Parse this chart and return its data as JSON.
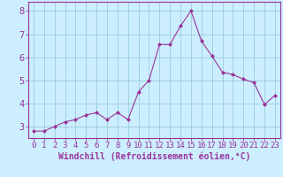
{
  "x": [
    0,
    1,
    2,
    3,
    4,
    5,
    6,
    7,
    8,
    9,
    10,
    11,
    12,
    13,
    14,
    15,
    16,
    17,
    18,
    19,
    20,
    21,
    22,
    23
  ],
  "y": [
    2.8,
    2.8,
    3.0,
    3.2,
    3.3,
    3.5,
    3.6,
    3.3,
    3.6,
    3.3,
    4.5,
    5.0,
    6.55,
    6.55,
    7.35,
    8.0,
    6.7,
    6.05,
    5.35,
    5.25,
    5.05,
    4.9,
    3.95,
    4.35
  ],
  "line_color": "#993399",
  "marker_color": "#993399",
  "bg_color": "#cceeff",
  "grid_color": "#99ccdd",
  "axis_color": "#993399",
  "tick_color": "#993399",
  "xlabel": "Windchill (Refroidissement éolien,°C)",
  "xlim": [
    -0.5,
    23.5
  ],
  "ylim": [
    2.5,
    8.4
  ],
  "yticks": [
    3,
    4,
    5,
    6,
    7,
    8
  ],
  "xticks": [
    0,
    1,
    2,
    3,
    4,
    5,
    6,
    7,
    8,
    9,
    10,
    11,
    12,
    13,
    14,
    15,
    16,
    17,
    18,
    19,
    20,
    21,
    22,
    23
  ],
  "xtick_labels": [
    "0",
    "1",
    "2",
    "3",
    "4",
    "5",
    "6",
    "7",
    "8",
    "9",
    "10",
    "11",
    "12",
    "13",
    "14",
    "15",
    "16",
    "17",
    "18",
    "19",
    "20",
    "21",
    "22",
    "23"
  ],
  "font_size": 6.5,
  "xlabel_fontsize": 7.0
}
